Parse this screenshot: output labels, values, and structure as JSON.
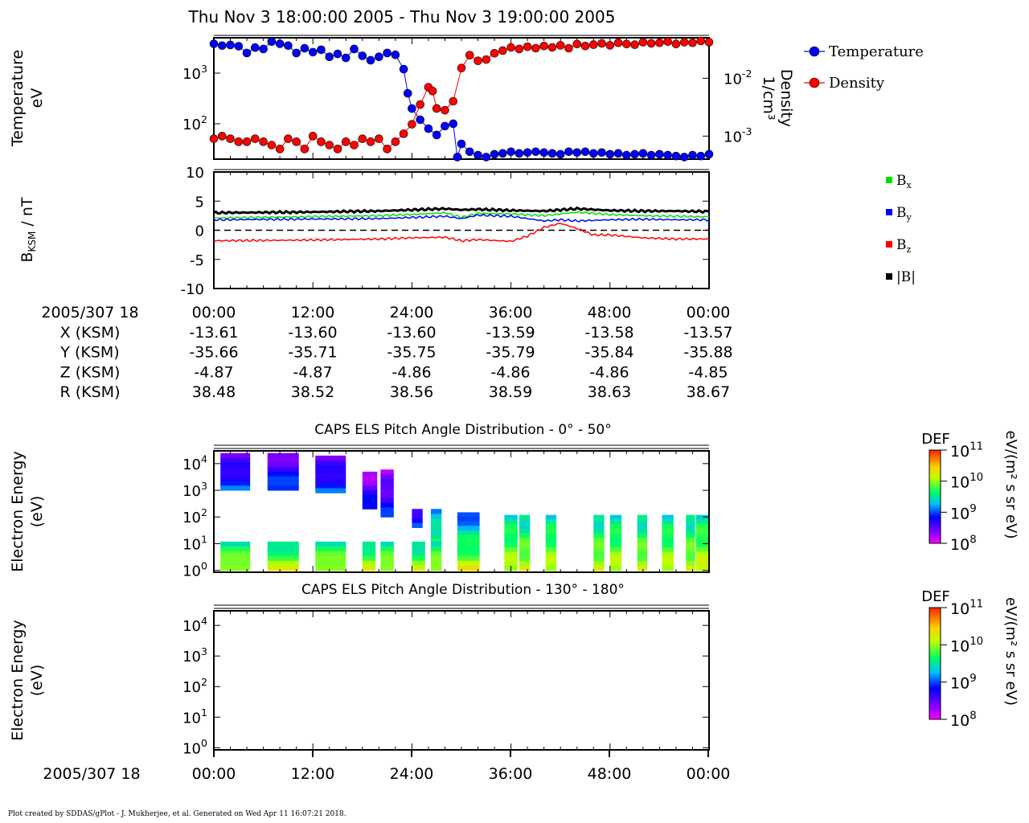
{
  "page": {
    "title": "Thu Nov 3 18:00:00 2005 - Thu Nov 3 19:00:00 2005",
    "footer": "Plot created by SDDAS/gPlot - J. Mukherjee, et al.  Generated on Wed Apr 11 16:07:21 2018."
  },
  "chart_data": [
    {
      "type": "line",
      "panel": "moments",
      "x_unit": "minutes after 2005/307 18:00",
      "xlim": [
        0,
        60
      ],
      "ylabel_left": [
        "Temperature",
        "eV"
      ],
      "ylabel_right": [
        "Density",
        "1/cm³"
      ],
      "left_axis": {
        "scale": "log",
        "range": [
          20,
          5000
        ],
        "ticks": [
          {
            "label": "10",
            "sup": "3"
          },
          {
            "label": "10",
            "sup": "2"
          }
        ]
      },
      "right_axis": {
        "scale": "log",
        "range": [
          0.0004,
          0.05
        ],
        "ticks": [
          {
            "label": "10",
            "sup": "-2"
          },
          {
            "label": "10",
            "sup": "-3"
          }
        ]
      },
      "series": [
        {
          "name": "Temperature",
          "color": "#0000ff",
          "axis": "left",
          "x": [
            0,
            1,
            2,
            3,
            4,
            5,
            6,
            7,
            8,
            9,
            10,
            11,
            12,
            13,
            14,
            15,
            16,
            17,
            18,
            19,
            20,
            21,
            22,
            23,
            23.5,
            24,
            25,
            26,
            27,
            28,
            29,
            29.5,
            30,
            31,
            32,
            33,
            34,
            35,
            36,
            37,
            38,
            39,
            40,
            41,
            42,
            43,
            44,
            45,
            46,
            47,
            48,
            49,
            50,
            51,
            52,
            53,
            54,
            55,
            56,
            57,
            58,
            59,
            60
          ],
          "values": [
            3800,
            3500,
            3600,
            3400,
            2500,
            3200,
            3000,
            4200,
            3800,
            3500,
            2500,
            3100,
            2600,
            2900,
            2100,
            2400,
            2000,
            3000,
            2200,
            1800,
            2100,
            2500,
            2300,
            1200,
            400,
            200,
            120,
            80,
            60,
            90,
            100,
            22,
            40,
            28,
            24,
            22,
            25,
            26,
            28,
            26,
            27,
            28,
            27,
            26,
            25,
            28,
            27,
            28,
            26,
            27,
            25,
            26,
            24,
            25,
            26,
            24,
            25,
            24,
            23,
            22,
            24,
            23,
            25
          ],
          "legend": "Temperature"
        },
        {
          "name": "Density",
          "color": "#ff0000",
          "axis": "right",
          "x": [
            0,
            1,
            2,
            3,
            4,
            5,
            6,
            7,
            8,
            9,
            10,
            11,
            12,
            13,
            14,
            15,
            16,
            17,
            18,
            19,
            20,
            21,
            22,
            23,
            24,
            25,
            26,
            26.5,
            27,
            28,
            29,
            30,
            31,
            32,
            33,
            34,
            35,
            36,
            37,
            38,
            39,
            40,
            41,
            42,
            43,
            44,
            45,
            46,
            47,
            48,
            49,
            50,
            51,
            52,
            53,
            54,
            55,
            56,
            57,
            58,
            59,
            60
          ],
          "values": [
            0.0009,
            0.001,
            0.0009,
            0.0008,
            0.0008,
            0.0009,
            0.0008,
            0.0007,
            0.0006,
            0.0009,
            0.0008,
            0.0006,
            0.001,
            0.0008,
            0.0007,
            0.0006,
            0.0008,
            0.0007,
            0.0009,
            0.0008,
            0.0009,
            0.0006,
            0.0008,
            0.0011,
            0.0016,
            0.0035,
            0.007,
            0.006,
            0.003,
            0.0028,
            0.004,
            0.015,
            0.025,
            0.02,
            0.021,
            0.027,
            0.03,
            0.034,
            0.032,
            0.035,
            0.033,
            0.036,
            0.034,
            0.037,
            0.033,
            0.039,
            0.036,
            0.038,
            0.04,
            0.037,
            0.041,
            0.039,
            0.038,
            0.042,
            0.04,
            0.041,
            0.043,
            0.039,
            0.042,
            0.041,
            0.044,
            0.042
          ],
          "legend": "Density"
        }
      ]
    },
    {
      "type": "line",
      "panel": "magnetic-field",
      "xlim": [
        0,
        60
      ],
      "ylim": [
        -10,
        10
      ],
      "yticks": [
        "10",
        "5",
        "0",
        "-5",
        "-10"
      ],
      "ylabel": {
        "main": "B",
        "sub": "KSM",
        "rest": " / nT"
      },
      "zero_line": "dashed",
      "series": [
        {
          "name": "Bx",
          "color": "#00e000",
          "x": [
            0,
            10,
            20,
            24,
            28,
            30,
            32,
            36,
            40,
            44,
            48,
            52,
            56,
            60
          ],
          "values": [
            2.1,
            2.3,
            2.5,
            2.7,
            3.0,
            2.2,
            2.9,
            2.8,
            2.5,
            3.1,
            2.7,
            2.5,
            2.4,
            2.3
          ]
        },
        {
          "name": "By",
          "color": "#0000ff",
          "x": [
            0,
            10,
            20,
            24,
            28,
            30,
            32,
            36,
            38,
            40,
            42,
            44,
            48,
            52,
            56,
            60
          ],
          "values": [
            1.8,
            1.9,
            2.0,
            2.2,
            2.4,
            2.0,
            2.6,
            2.4,
            2.0,
            1.6,
            1.8,
            1.6,
            1.8,
            1.9,
            1.8,
            1.8
          ]
        },
        {
          "name": "Bz",
          "color": "#ff0000",
          "x": [
            0,
            10,
            20,
            24,
            28,
            30,
            32,
            36,
            38,
            40,
            42,
            44,
            46,
            48,
            52,
            56,
            60
          ],
          "values": [
            -1.8,
            -1.7,
            -1.5,
            -1.3,
            -1.2,
            -1.8,
            -1.6,
            -1.9,
            -1.0,
            0.5,
            1.2,
            0.3,
            -0.8,
            -0.8,
            -1.3,
            -1.5,
            -1.5
          ]
        },
        {
          "name": "|B|",
          "color": "#000000",
          "x": [
            0,
            10,
            20,
            24,
            28,
            30,
            32,
            36,
            40,
            44,
            48,
            52,
            56,
            60
          ],
          "values": [
            3.0,
            3.1,
            3.3,
            3.5,
            3.7,
            3.5,
            3.6,
            3.4,
            3.3,
            3.7,
            3.4,
            3.3,
            3.3,
            3.2
          ]
        }
      ],
      "legend": [
        {
          "label": "B",
          "sub": "x",
          "color": "#00e000"
        },
        {
          "label": "B",
          "sub": "y",
          "color": "#0000ff"
        },
        {
          "label": "B",
          "sub": "z",
          "color": "#ff0000"
        },
        {
          "label": "|B|",
          "sub": "",
          "color": "#000000"
        }
      ]
    },
    {
      "type": "table",
      "panel": "ephemeris",
      "header_label": "2005/307 18",
      "columns": [
        "00:00",
        "12:00",
        "24:00",
        "36:00",
        "48:00",
        "00:00"
      ],
      "rows": [
        {
          "label": "X (KSM)",
          "values": [
            "-13.61",
            "-13.60",
            "-13.60",
            "-13.59",
            "-13.58",
            "-13.57"
          ]
        },
        {
          "label": "Y (KSM)",
          "values": [
            "-35.66",
            "-35.71",
            "-35.75",
            "-35.79",
            "-35.84",
            "-35.88"
          ]
        },
        {
          "label": "Z (KSM)",
          "values": [
            "-4.87",
            "-4.87",
            "-4.86",
            "-4.86",
            "-4.86",
            "-4.85"
          ]
        },
        {
          "label": "R (KSM)",
          "values": [
            "38.48",
            "38.52",
            "38.56",
            "38.59",
            "38.63",
            "38.67"
          ]
        }
      ]
    },
    {
      "type": "heatmap",
      "panel": "pad-0-50",
      "title": "CAPS ELS Pitch Angle Distribution - 0° - 50°",
      "ylabel": [
        "Electron Energy",
        "(eV)"
      ],
      "y_scale": "log",
      "yticks": [
        {
          "label": "10",
          "sup": "4"
        },
        {
          "label": "10",
          "sup": "3"
        },
        {
          "label": "10",
          "sup": "2"
        },
        {
          "label": "10",
          "sup": "1"
        },
        {
          "label": "10",
          "sup": "0"
        }
      ],
      "colorbar": {
        "title": "DEF",
        "unit": "eV/(m² s sr eV)",
        "ticks": [
          {
            "label": "10",
            "sup": "11"
          },
          {
            "label": "10",
            "sup": "10"
          },
          {
            "label": "10",
            "sup": "9"
          },
          {
            "label": "10",
            "sup": "8"
          }
        ]
      },
      "blocks": [
        {
          "x": [
            0.8,
            4.4
          ],
          "e": [
            1000,
            25000
          ],
          "level": 0.25
        },
        {
          "x": [
            6.5,
            10.3
          ],
          "e": [
            1000,
            25000
          ],
          "level": 0.25
        },
        {
          "x": [
            12.3,
            16.0
          ],
          "e": [
            800,
            20000
          ],
          "level": 0.25
        },
        {
          "x": [
            18.0,
            19.8
          ],
          "e": [
            200,
            5000
          ],
          "level": 0.2
        },
        {
          "x": [
            20.2,
            21.8
          ],
          "e": [
            100,
            6000
          ],
          "level": 0.2
        },
        {
          "x": [
            24.0,
            25.3
          ],
          "e": [
            40,
            200
          ],
          "level": 0.3
        },
        {
          "x": [
            26.3,
            27.6
          ],
          "e": [
            10,
            200
          ],
          "level": 0.5
        },
        {
          "x": [
            29.5,
            32.2
          ],
          "e": [
            10,
            150
          ],
          "level": 0.45
        },
        {
          "x": [
            0.8,
            4.4
          ],
          "e": [
            1,
            12
          ],
          "level": 0.62
        },
        {
          "x": [
            6.5,
            10.3
          ],
          "e": [
            1,
            12
          ],
          "level": 0.62
        },
        {
          "x": [
            12.3,
            16.0
          ],
          "e": [
            1,
            12
          ],
          "level": 0.62
        },
        {
          "x": [
            18.0,
            19.6
          ],
          "e": [
            1,
            12
          ],
          "level": 0.62
        },
        {
          "x": [
            20.2,
            21.8
          ],
          "e": [
            1,
            12
          ],
          "level": 0.62
        },
        {
          "x": [
            24.0,
            25.6
          ],
          "e": [
            1,
            12
          ],
          "level": 0.6
        },
        {
          "x": [
            26.3,
            27.6
          ],
          "e": [
            1,
            12
          ],
          "level": 0.62
        },
        {
          "x": [
            29.5,
            32.2
          ],
          "e": [
            1,
            12
          ],
          "level": 0.65
        },
        {
          "x": [
            35.2,
            36.8
          ],
          "e": [
            1,
            120
          ],
          "level": 0.6
        },
        {
          "x": [
            37.0,
            38.3
          ],
          "e": [
            1,
            120
          ],
          "level": 0.6
        },
        {
          "x": [
            40.2,
            41.5
          ],
          "e": [
            1,
            120
          ],
          "level": 0.6
        },
        {
          "x": [
            46.0,
            47.3
          ],
          "e": [
            1,
            120
          ],
          "level": 0.6
        },
        {
          "x": [
            48.0,
            49.4
          ],
          "e": [
            1,
            120
          ],
          "level": 0.6
        },
        {
          "x": [
            51.3,
            52.5
          ],
          "e": [
            1,
            120
          ],
          "level": 0.6
        },
        {
          "x": [
            54.3,
            55.7
          ],
          "e": [
            1,
            120
          ],
          "level": 0.6
        },
        {
          "x": [
            57.2,
            58.3
          ],
          "e": [
            1,
            120
          ],
          "level": 0.6
        },
        {
          "x": [
            58.4,
            60.0
          ],
          "e": [
            1,
            120
          ],
          "level": 0.62
        }
      ]
    },
    {
      "type": "heatmap",
      "panel": "pad-130-180",
      "title": "CAPS ELS Pitch Angle Distribution - 130° - 180°",
      "ylabel": [
        "Electron Energy",
        "(eV)"
      ],
      "y_scale": "log",
      "yticks": [
        {
          "label": "10",
          "sup": "4"
        },
        {
          "label": "10",
          "sup": "3"
        },
        {
          "label": "10",
          "sup": "2"
        },
        {
          "label": "10",
          "sup": "1"
        },
        {
          "label": "10",
          "sup": "0"
        }
      ],
      "colorbar": {
        "title": "DEF",
        "unit": "eV/(m² s sr eV)",
        "ticks": [
          {
            "label": "10",
            "sup": "11"
          },
          {
            "label": "10",
            "sup": "10"
          },
          {
            "label": "10",
            "sup": "9"
          },
          {
            "label": "10",
            "sup": "8"
          }
        ]
      },
      "blocks": []
    }
  ],
  "bottom_axis": {
    "label": "2005/307 18",
    "ticks": [
      "00:00",
      "12:00",
      "24:00",
      "36:00",
      "48:00",
      "00:00"
    ]
  }
}
